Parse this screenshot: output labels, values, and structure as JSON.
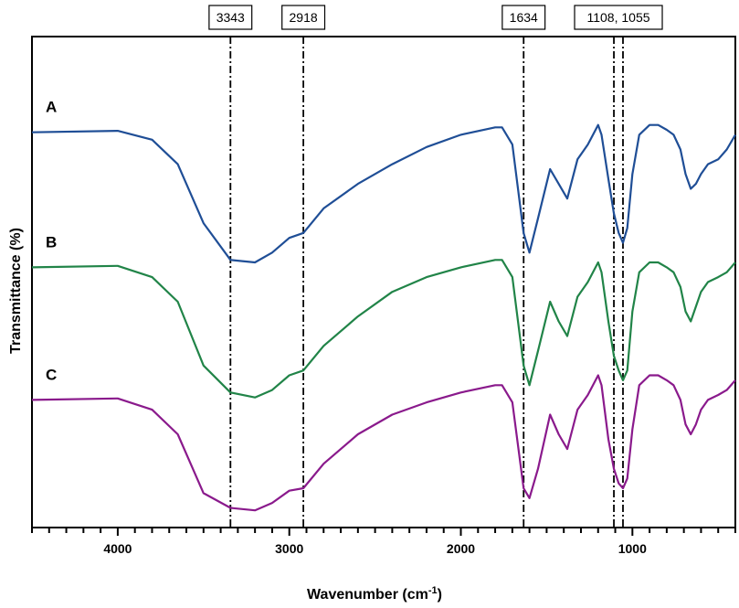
{
  "chart_data": {
    "type": "line",
    "xlabel": "Wavenumber (cm",
    "xlabel_sup": "-1",
    "xlabel_close": ")",
    "ylabel": "Transmittance (%)",
    "xlim": [
      4500,
      400
    ],
    "x_reversed": true,
    "ylim": [
      0,
      1
    ],
    "x_ticks": [
      4000,
      3000,
      2000,
      1000
    ],
    "x_tick_labels": [
      "4000",
      "3000",
      "2000",
      "1000"
    ],
    "y_tick_labels": false,
    "grid": false,
    "legend": "none",
    "reference_lines": [
      {
        "x": 3343,
        "label": "3343"
      },
      {
        "x": 2918,
        "label": "2918"
      },
      {
        "x": 1634,
        "label": "1634"
      },
      {
        "x": 1108,
        "label": "1108, 1055",
        "pair": 1055
      }
    ],
    "series": [
      {
        "label": "A",
        "color": "#1f4e96",
        "x": [
          4500,
          4000,
          3800,
          3650,
          3500,
          3343,
          3200,
          3100,
          3000,
          2918,
          2800,
          2600,
          2400,
          2200,
          2000,
          1800,
          1760,
          1700,
          1634,
          1600,
          1550,
          1480,
          1430,
          1380,
          1320,
          1260,
          1200,
          1180,
          1140,
          1108,
          1080,
          1055,
          1030,
          1000,
          960,
          900,
          850,
          800,
          760,
          720,
          690,
          660,
          630,
          600,
          560,
          500,
          450,
          400
        ],
        "y": [
          0.805,
          0.808,
          0.79,
          0.74,
          0.62,
          0.545,
          0.54,
          0.56,
          0.59,
          0.6,
          0.65,
          0.7,
          0.74,
          0.775,
          0.8,
          0.815,
          0.815,
          0.78,
          0.6,
          0.56,
          0.63,
          0.73,
          0.7,
          0.67,
          0.75,
          0.78,
          0.82,
          0.8,
          0.71,
          0.64,
          0.6,
          0.58,
          0.61,
          0.72,
          0.8,
          0.82,
          0.82,
          0.81,
          0.8,
          0.77,
          0.72,
          0.69,
          0.7,
          0.72,
          0.74,
          0.75,
          0.77,
          0.8
        ]
      },
      {
        "label": "B",
        "color": "#218448",
        "x": [
          4500,
          4000,
          3800,
          3650,
          3500,
          3343,
          3200,
          3100,
          3000,
          2918,
          2800,
          2600,
          2400,
          2200,
          2000,
          1800,
          1760,
          1700,
          1634,
          1600,
          1550,
          1480,
          1430,
          1380,
          1320,
          1260,
          1200,
          1180,
          1140,
          1108,
          1080,
          1055,
          1030,
          1000,
          960,
          900,
          850,
          800,
          760,
          720,
          690,
          660,
          630,
          600,
          560,
          500,
          450,
          400
        ],
        "y": [
          0.53,
          0.533,
          0.51,
          0.46,
          0.33,
          0.275,
          0.265,
          0.28,
          0.31,
          0.32,
          0.37,
          0.43,
          0.48,
          0.51,
          0.53,
          0.545,
          0.545,
          0.51,
          0.33,
          0.29,
          0.36,
          0.46,
          0.42,
          0.39,
          0.47,
          0.5,
          0.54,
          0.52,
          0.42,
          0.35,
          0.32,
          0.3,
          0.32,
          0.44,
          0.52,
          0.54,
          0.54,
          0.53,
          0.52,
          0.49,
          0.44,
          0.42,
          0.45,
          0.48,
          0.5,
          0.51,
          0.52,
          0.54
        ]
      },
      {
        "label": "C",
        "color": "#8a1a8c",
        "x": [
          4500,
          4000,
          3800,
          3650,
          3500,
          3343,
          3200,
          3100,
          3000,
          2918,
          2800,
          2600,
          2400,
          2200,
          2000,
          1800,
          1760,
          1700,
          1634,
          1600,
          1550,
          1480,
          1430,
          1380,
          1320,
          1260,
          1200,
          1180,
          1140,
          1108,
          1080,
          1055,
          1030,
          1000,
          960,
          900,
          850,
          800,
          760,
          720,
          690,
          660,
          630,
          600,
          560,
          500,
          450,
          400
        ],
        "y": [
          0.26,
          0.263,
          0.24,
          0.19,
          0.07,
          0.04,
          0.035,
          0.05,
          0.075,
          0.08,
          0.13,
          0.19,
          0.23,
          0.255,
          0.275,
          0.29,
          0.29,
          0.255,
          0.08,
          0.06,
          0.12,
          0.23,
          0.19,
          0.16,
          0.24,
          0.27,
          0.31,
          0.29,
          0.18,
          0.12,
          0.09,
          0.08,
          0.1,
          0.2,
          0.29,
          0.31,
          0.31,
          0.3,
          0.29,
          0.26,
          0.21,
          0.19,
          0.21,
          0.24,
          0.26,
          0.27,
          0.28,
          0.3
        ]
      }
    ]
  }
}
